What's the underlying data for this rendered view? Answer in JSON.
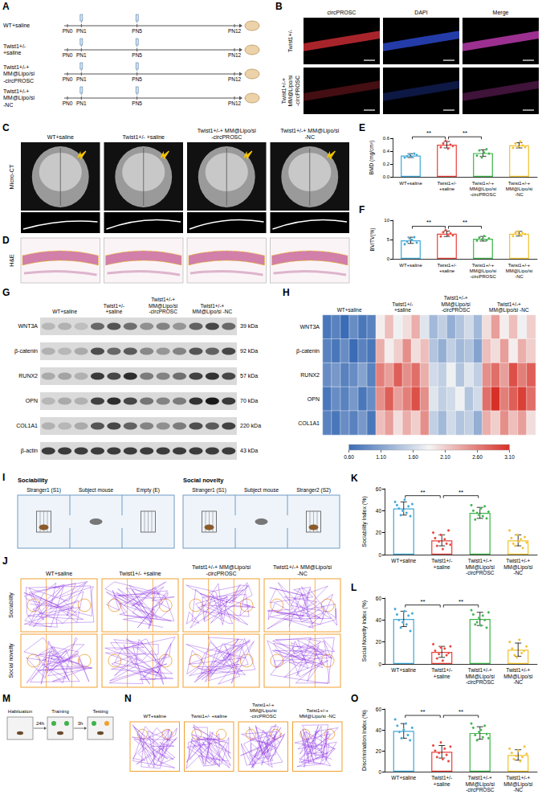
{
  "figure": {
    "A": {
      "letter": "A",
      "rows": [
        "WT+saline",
        "Twist1+/- +saline",
        "Twist1+/-+ MM@Lipo/si -circPROSC",
        "Twist1+/-+ MM@Lipo/si -NC"
      ],
      "timepoints": [
        "PN0",
        "PN1",
        "PN5",
        "PN12"
      ]
    },
    "B": {
      "letter": "B",
      "columns": [
        "circPROSC",
        "DAPI",
        "Merge"
      ],
      "rows": [
        "Twist1+/-",
        "Twist1+/-+ MM@Lipo/si -circPROSC"
      ]
    },
    "C": {
      "letter": "C",
      "row_label": "Micro-CT",
      "columns": [
        "WT+saline",
        "Twist1+/- +saline",
        "Twist1+/-+ MM@Lipo/si -circPROSC",
        "Twist1+/-+ MM@Lipo/si -NC"
      ]
    },
    "D": {
      "letter": "D",
      "row_label": "H&E"
    },
    "G": {
      "letter": "G",
      "columns": [
        "WT+saline",
        "Twist1+/- +saline",
        "Twist1+/-+ MM@Lipo/si -circPROSC",
        "Twist1+/-+ MM@Lipo/si -NC"
      ],
      "rows": [
        {
          "protein": "WNT3A",
          "size": "39 kDa"
        },
        {
          "protein": "β-catenin",
          "size": "92 kDa"
        },
        {
          "protein": "RUNX2",
          "size": "57 kDa"
        },
        {
          "protein": "OPN",
          "size": "70 kDa"
        },
        {
          "protein": "COL1A1",
          "size": "220 kDa"
        },
        {
          "protein": "β-actin",
          "size": "43 kDa"
        }
      ]
    },
    "I": {
      "letter": "I",
      "setups": [
        {
          "title": "Sociability",
          "chambers": [
            "Stranger1 (S1)",
            "Subject mouse",
            "Empty (E)"
          ]
        },
        {
          "title": "Social novelty",
          "chambers": [
            "Stranger1 (S1)",
            "Subject mouse",
            "Stranger2 (S2)"
          ]
        }
      ]
    },
    "J": {
      "letter": "J",
      "rows": [
        "Sociability",
        "Social novelty"
      ],
      "columns": [
        "WT+saline",
        "Twist1+/- +saline",
        "Twist1+/-+ MM@Lipo/si -circPROSC",
        "Twist1+/-+ MM@Lipo/si -NC"
      ]
    },
    "M": {
      "letter": "M",
      "steps": [
        "Habituation",
        "Training",
        "Testing"
      ],
      "intervals": [
        "24h",
        "3h"
      ]
    },
    "N": {
      "letter": "N",
      "columns": [
        "WT+saline",
        "Twist1+/- +saline",
        "Twist1+/-+ MM@Lipo/si -circPROSC",
        "Twist1+/-+ MM@Lipo/si -NC"
      ]
    }
  },
  "chart_data": [
    {
      "panel": "E",
      "type": "bar",
      "ylabel": "BMD (mg/cm³)",
      "categories": [
        "WT+saline",
        "Twist1+/- +saline",
        "Twist1+/-+ MM@Lipo/si -circPROSC",
        "Twist1+/-+ MM@Lipo/si -NC"
      ],
      "values": [
        0.33,
        0.5,
        0.37,
        0.49
      ],
      "errors": [
        0.03,
        0.05,
        0.05,
        0.04
      ],
      "points": [
        [
          0.3,
          0.32,
          0.35,
          0.31,
          0.36,
          0.34
        ],
        [
          0.46,
          0.52,
          0.56,
          0.44,
          0.5,
          0.48
        ],
        [
          0.33,
          0.41,
          0.3,
          0.38,
          0.43,
          0.36
        ],
        [
          0.45,
          0.52,
          0.47,
          0.55,
          0.49,
          0.46
        ]
      ],
      "colors": [
        "#3fa7d6",
        "#e8413a",
        "#3db34a",
        "#f2c12e"
      ],
      "ylim": [
        0,
        0.6
      ],
      "yticks": [
        {
          "value": 0,
          "label": "0.0"
        },
        0.2,
        0.4,
        0.6
      ],
      "grid": false,
      "annotations": [
        {
          "text": "**",
          "groups": [
            0,
            1
          ]
        },
        {
          "text": "**",
          "groups": [
            1,
            2
          ]
        }
      ]
    },
    {
      "panel": "F",
      "type": "bar",
      "ylabel": "BV/TV(%)",
      "categories": [
        "WT+saline",
        "Twist1+/- +saline",
        "Twist1+/-+ MM@Lipo/si -circPROSC",
        "Twist1+/-+ MM@Lipo/si -NC"
      ],
      "values": [
        4.8,
        6.5,
        5.2,
        6.5
      ],
      "errors": [
        0.8,
        0.7,
        0.6,
        0.6
      ],
      "points": [
        [
          3.8,
          4.5,
          5.3,
          4.9,
          5.6,
          4.2
        ],
        [
          5.8,
          6.9,
          7.4,
          6.2,
          6.6,
          6.1
        ],
        [
          4.7,
          5.5,
          5.0,
          5.9,
          4.8,
          5.3
        ],
        [
          5.9,
          6.8,
          7.1,
          6.2,
          6.6,
          6.4
        ]
      ],
      "colors": [
        "#3fa7d6",
        "#e8413a",
        "#3db34a",
        "#f2c12e"
      ],
      "ylim": [
        0,
        10
      ],
      "yticks": [
        0,
        5,
        10
      ],
      "grid": false,
      "annotations": [
        {
          "text": "**",
          "groups": [
            0,
            1
          ]
        },
        {
          "text": "**",
          "groups": [
            1,
            2
          ]
        }
      ]
    },
    {
      "panel": "H",
      "type": "heatmap",
      "tick_labels": "y",
      "rows": [
        "WNT3A",
        "β-catenin",
        "RUNX2",
        "OPN",
        "COL1A1"
      ],
      "column_groups": [
        "WT+saline",
        "Twist1+/- +saline",
        "Twist1+/-+ MM@Lipo/si -circPROSC",
        "Twist1+/-+ MM@Lipo/si -NC"
      ],
      "cells": [
        [
          0.7,
          0.8,
          0.6,
          0.9,
          0.7,
          0.8,
          1.9,
          2.2,
          1.8,
          2.0,
          2.3,
          1.7,
          1.3,
          1.5,
          1.2,
          1.4,
          1.6,
          1.3,
          2.0,
          2.4,
          1.9,
          2.2,
          1.8,
          2.1
        ],
        [
          0.8,
          0.7,
          0.9,
          0.6,
          0.8,
          0.7,
          2.3,
          1.9,
          2.1,
          2.5,
          2.0,
          2.2,
          1.4,
          1.2,
          1.5,
          1.3,
          1.4,
          1.1,
          2.2,
          2.0,
          2.4,
          1.9,
          2.3,
          2.1
        ],
        [
          0.9,
          1.0,
          0.8,
          0.9,
          1.1,
          0.8,
          2.6,
          2.4,
          2.8,
          2.5,
          2.7,
          2.3,
          1.6,
          1.5,
          1.8,
          1.4,
          1.7,
          1.5,
          2.5,
          2.7,
          2.4,
          2.9,
          2.6,
          2.8
        ],
        [
          0.7,
          0.9,
          0.8,
          1.0,
          0.7,
          0.9,
          2.5,
          2.8,
          2.4,
          2.6,
          2.9,
          2.5,
          1.7,
          1.5,
          1.6,
          1.8,
          1.4,
          1.6,
          2.7,
          3.1,
          2.6,
          2.8,
          3.0,
          2.7
        ],
        [
          0.8,
          0.7,
          0.9,
          0.8,
          1.0,
          0.7,
          2.2,
          2.4,
          2.0,
          2.3,
          2.1,
          2.5,
          1.5,
          1.3,
          1.6,
          1.4,
          1.5,
          1.2,
          2.3,
          2.1,
          2.5,
          2.2,
          2.4,
          2.0
        ]
      ],
      "colorbar": {
        "range": [
          0.6,
          3.1
        ],
        "ticks": [
          {
            "value": 0.6,
            "label": "0.60"
          },
          {
            "value": 1.1,
            "label": "1.10"
          },
          {
            "value": 1.6,
            "label": "1.60"
          },
          {
            "value": 2.1,
            "label": "2.10"
          },
          {
            "value": 2.6,
            "label": "2.60"
          },
          {
            "value": 3.1,
            "label": "3.10"
          }
        ]
      }
    },
    {
      "panel": "K",
      "type": "bar",
      "ylabel": "Sociability Index (%)",
      "categories": [
        "WT+saline",
        "Twist1+/- +saline",
        "Twist1+/-+ MM@Lipo/si -circPROSC",
        "Twist1+/-+ MM@Lipo/si -NC"
      ],
      "values": [
        42,
        13,
        38,
        13
      ],
      "errors": [
        6,
        5,
        5,
        5
      ],
      "points": [
        [
          48,
          45,
          42,
          36,
          40,
          50,
          38,
          44,
          35,
          46
        ],
        [
          20,
          15,
          8,
          12,
          18,
          5,
          14,
          10,
          22,
          9
        ],
        [
          45,
          40,
          32,
          38,
          36,
          42,
          35,
          44,
          33,
          39
        ],
        [
          22,
          15,
          10,
          8,
          18,
          12,
          14,
          6,
          16,
          11
        ]
      ],
      "colors": [
        "#3fa7d6",
        "#e8413a",
        "#3db34a",
        "#f2c12e"
      ],
      "ylim": [
        0,
        60
      ],
      "yticks": [
        0,
        20,
        40,
        60
      ],
      "grid": false,
      "annotations": [
        {
          "text": "**",
          "groups": [
            0,
            1
          ]
        },
        {
          "text": "**",
          "groups": [
            1,
            2
          ]
        }
      ]
    },
    {
      "panel": "L",
      "type": "bar",
      "ylabel": "Social Novelty Index (%)",
      "categories": [
        "WT+saline",
        "Twist1+/- +saline",
        "Twist1+/-+ MM@Lipo/si -circPROSC",
        "Twist1+/-+ MM@Lipo/si -NC"
      ],
      "values": [
        41,
        11,
        41,
        13
      ],
      "errors": [
        7,
        5,
        6,
        6
      ],
      "points": [
        [
          50,
          45,
          40,
          33,
          38,
          48,
          36,
          44,
          30,
          46
        ],
        [
          18,
          12,
          5,
          9,
          15,
          3,
          14,
          8,
          10,
          16
        ],
        [
          49,
          45,
          36,
          38,
          42,
          35,
          44,
          40,
          33,
          47
        ],
        [
          20,
          14,
          8,
          6,
          22,
          10,
          12,
          16
        ]
      ],
      "colors": [
        "#3fa7d6",
        "#e8413a",
        "#3db34a",
        "#f2c12e"
      ],
      "ylim": [
        0,
        60
      ],
      "yticks": [
        0,
        20,
        40,
        60
      ],
      "grid": false,
      "annotations": [
        {
          "text": "**",
          "groups": [
            0,
            1
          ]
        },
        {
          "text": "**",
          "groups": [
            1,
            2
          ]
        }
      ]
    },
    {
      "panel": "O",
      "type": "bar",
      "ylabel": "Discrimination Index (%)",
      "categories": [
        "WT+saline",
        "Twist1+/- +saline",
        "Twist1+/-+ MM@Lipo/si -circPROSC",
        "Twist1+/-+ MM@Lipo/si -NC"
      ],
      "values": [
        39,
        19,
        37,
        16
      ],
      "errors": [
        7,
        6,
        6,
        5
      ],
      "points": [
        [
          50,
          44,
          38,
          32,
          40,
          46,
          35,
          30,
          42
        ],
        [
          25,
          20,
          14,
          18,
          28,
          12,
          22,
          16,
          10,
          24
        ],
        [
          46,
          42,
          35,
          30,
          38,
          40,
          33,
          44,
          36,
          32
        ],
        [
          22,
          18,
          12,
          15,
          20,
          10,
          14,
          24,
          17
        ]
      ],
      "colors": [
        "#3fa7d6",
        "#e8413a",
        "#3db34a",
        "#f2c12e"
      ],
      "ylim": [
        0,
        60
      ],
      "yticks": [
        0,
        20,
        40,
        60
      ],
      "grid": false,
      "annotations": [
        {
          "text": "**",
          "groups": [
            0,
            1
          ]
        },
        {
          "text": "**",
          "groups": [
            1,
            2
          ]
        }
      ]
    }
  ]
}
